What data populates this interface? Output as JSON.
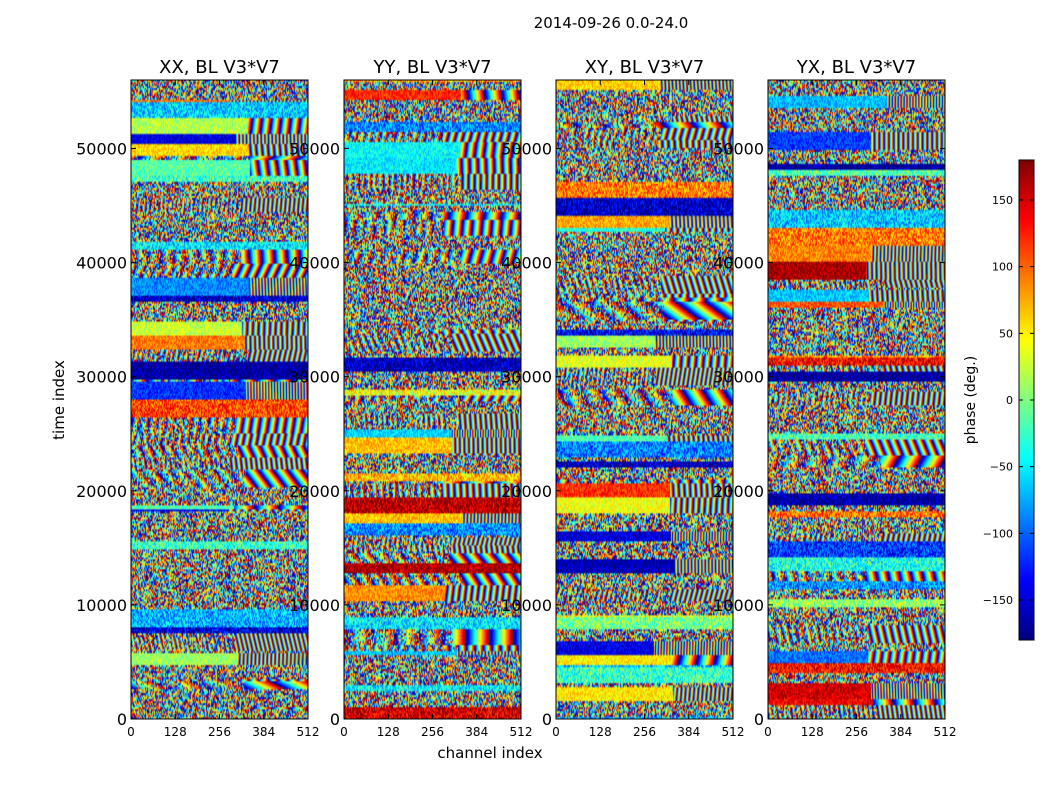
{
  "figure": {
    "suptitle": "2014-09-26 0.0-24.0"
  },
  "chart_data": {
    "type": "heatmap",
    "shared_x_label": "channel index",
    "shared_y_label": "time index",
    "x_range": [
      0,
      512
    ],
    "y_range": [
      0,
      56000
    ],
    "x_ticks": [
      "0",
      "128",
      "256",
      "384",
      "512"
    ],
    "y_ticks": [
      "0",
      "10000",
      "20000",
      "30000",
      "40000",
      "50000"
    ],
    "colorbar": {
      "label": "phase (deg.)",
      "range": [
        -180,
        180
      ],
      "ticks": [
        "−150",
        "−100",
        "−50",
        "0",
        "50",
        "100",
        "150"
      ],
      "colormap": "jet",
      "colors": [
        "#00007f",
        "#0000ff",
        "#007fff",
        "#00ffff",
        "#7fff7f",
        "#ffff00",
        "#ff7f00",
        "#ff0000",
        "#7f0000"
      ]
    },
    "panels": [
      {
        "title": "XX, BL V3*V7"
      },
      {
        "title": "YY, BL V3*V7"
      },
      {
        "title": "XY, BL V3*V7"
      },
      {
        "title": "YX, BL V3*V7"
      }
    ]
  }
}
